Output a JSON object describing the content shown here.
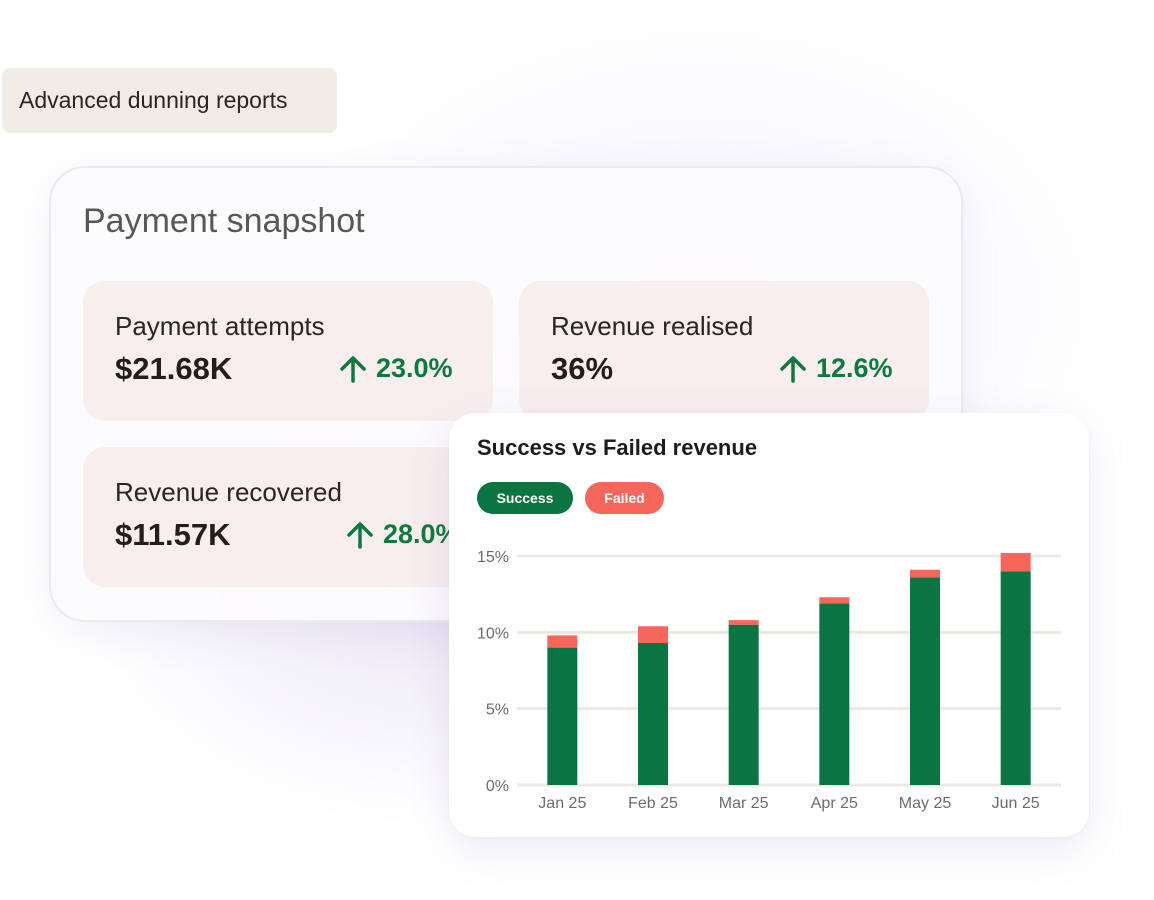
{
  "tag": {
    "label": "Advanced dunning reports"
  },
  "snapshot": {
    "title": "Payment snapshot",
    "metrics": [
      {
        "label": "Payment attempts",
        "value": "$21.68K",
        "change": "23.0%",
        "trend": "up"
      },
      {
        "label": "Revenue realised",
        "value": "36%",
        "change": "12.6%",
        "trend": "up"
      },
      {
        "label": "Revenue recovered",
        "value": "$11.57K",
        "change": "28.0%",
        "trend": "up"
      }
    ]
  },
  "colors": {
    "success": "#0a7540",
    "failed": "#f7665a",
    "trend_up": "#0c7a3e",
    "metric_card": "#f8eeee",
    "tag_bg": "#efede6"
  },
  "chart_data": {
    "type": "bar",
    "stacked": true,
    "title": "Success vs Failed revenue",
    "categories": [
      "Jan 25",
      "Feb 25",
      "Mar 25",
      "Apr 25",
      "May 25",
      "Jun 25"
    ],
    "series": [
      {
        "name": "Success",
        "values": [
          9.0,
          9.3,
          10.5,
          11.9,
          13.6,
          14.0
        ]
      },
      {
        "name": "Failed",
        "values": [
          0.8,
          1.1,
          0.3,
          0.4,
          0.5,
          1.2
        ]
      }
    ],
    "ylim": [
      0,
      15
    ],
    "yticks": [
      "0%",
      "5%",
      "10%",
      "15%"
    ],
    "grid": true,
    "legend_position": "top-left"
  }
}
